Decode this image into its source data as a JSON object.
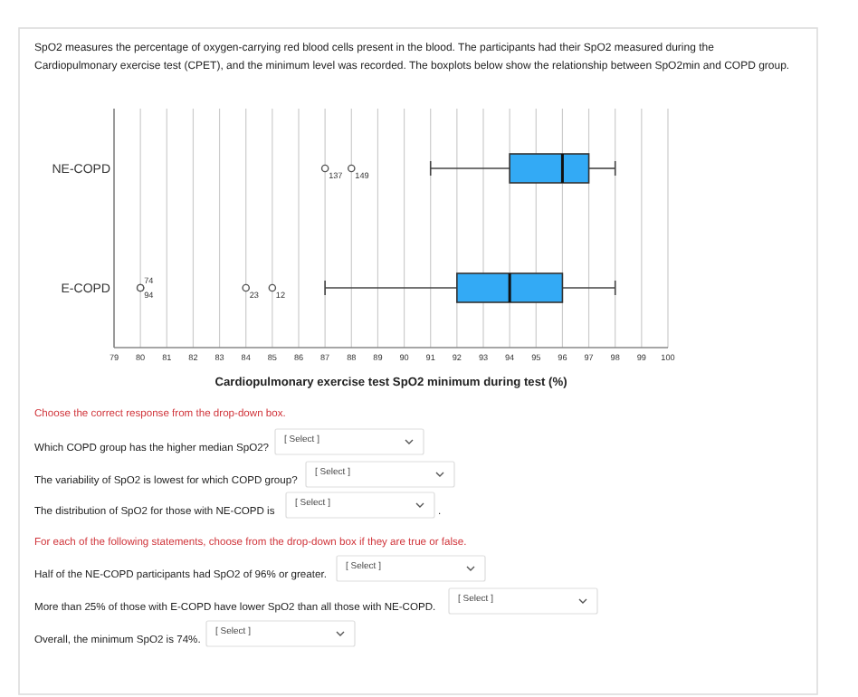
{
  "chart_data": {
    "type": "box",
    "orientation": "horizontal",
    "subtitle": "SpO2 measures the percentage of oxygen-carrying red blood cells present in the blood. The participants had their SpO2 measured during the Cardiopulmonary exercise test (CPET), and the minimum level was recorded.  The boxplots below show the relationship between SpO2min and COPD group.",
    "xlabel": "Cardiopulmonary exercise test SpO2  minimum during test (%)",
    "categories": [
      "NE-COPD",
      "E-COPD"
    ],
    "color": "#33aaf5",
    "boxes": [
      {
        "low": 91,
        "q1": 94,
        "median": 96,
        "q3": 97,
        "high": 98,
        "outliers": [
          87,
          88
        ]
      },
      {
        "low": 87,
        "q1": 92,
        "median": 94,
        "q3": 96,
        "high": 98,
        "outliers": [
          80,
          80,
          84,
          85
        ]
      }
    ],
    "xlim": [
      79,
      100
    ],
    "xticks": [
      79,
      80,
      81,
      82,
      83,
      84,
      85,
      86,
      87,
      88,
      89,
      90,
      91,
      92,
      93,
      94,
      95,
      96,
      97,
      98,
      99,
      100
    ],
    "grid": "x",
    "annotations": [
      "137",
      "149",
      "94",
      "74",
      "23",
      "12",
      "Choose the correct response from the drop-down box.",
      "Which COPD group has the higher median SpO2?",
      "[ Select ]",
      "The variability of SpO2 is lowest for which COPD group?",
      "[ Select ]",
      "The distribution of SpO2 for those with NE-COPD is",
      "[ Select ]",
      ".",
      "For each of the following statements, choose from the drop-down box if they are true or false.",
      "Half of the NE-COPD participants had SpO2 of 96% or greater.",
      "[ Select ]",
      "More than 25% of those with E-COPD have lower SpO2 than all those with NE-COPD.",
      "[ Select ]",
      "Overall, the minimum SpO2 is 74%.",
      "[ Select ]"
    ]
  }
}
